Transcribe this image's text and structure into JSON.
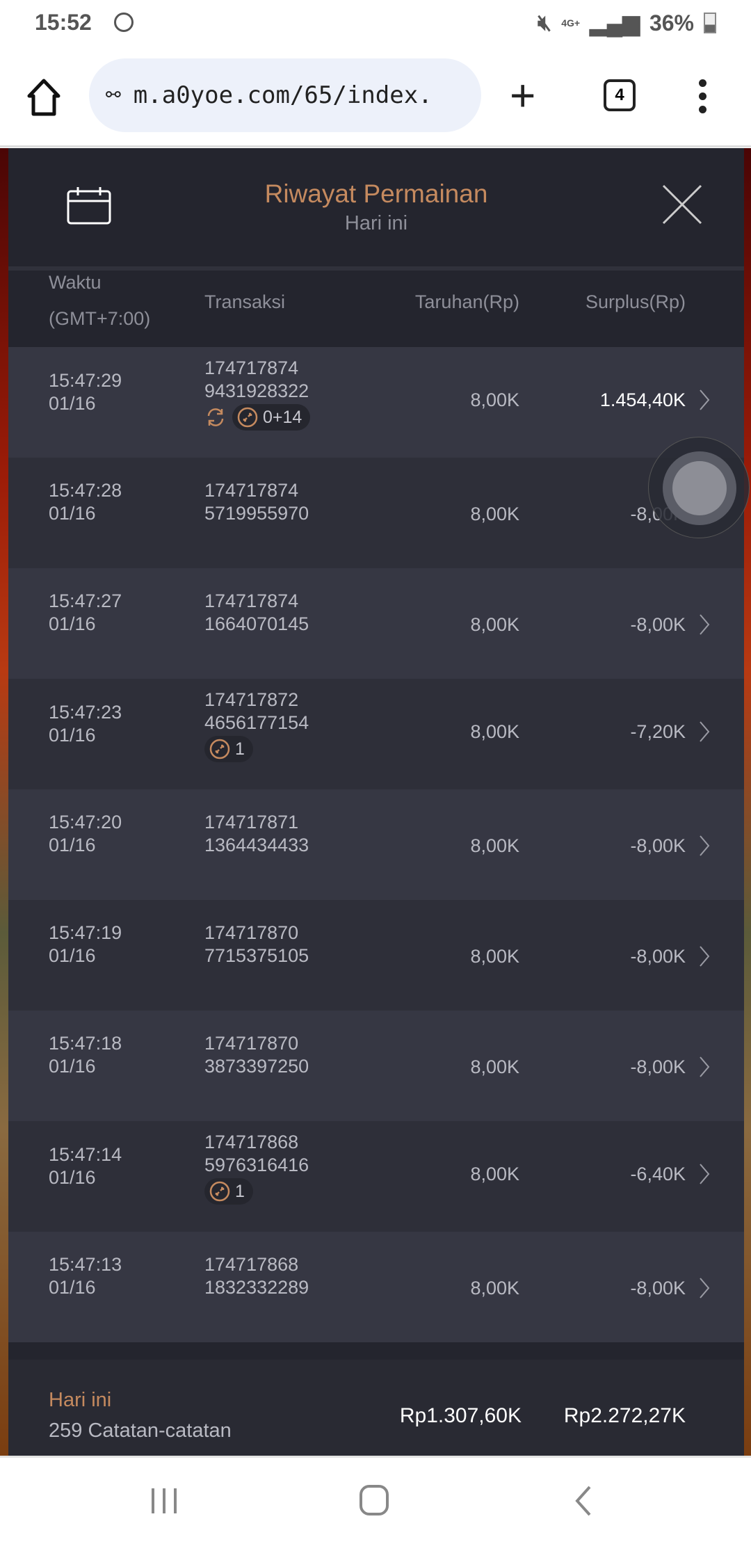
{
  "status_bar": {
    "time": "15:52",
    "network": "4G+",
    "battery": "36%"
  },
  "browser": {
    "url": "m.a0yoe.com/65/index.",
    "tab_count": "4"
  },
  "modal": {
    "title": "Riwayat Permainan",
    "subtitle": "Hari ini",
    "columns": {
      "time": "Waktu",
      "timezone": "(GMT+7:00)",
      "transaction": "Transaksi",
      "bet": "Taruhan(Rp)",
      "surplus": "Surplus(Rp)"
    },
    "rows": [
      {
        "time": "15:47:29",
        "date": "01/16",
        "tx1": "174717874",
        "tx2": "9431928322",
        "bet": "8,00K",
        "surplus": "1.454,40K",
        "positive": true,
        "refresh": true,
        "badge": "0+14"
      },
      {
        "time": "15:47:28",
        "date": "01/16",
        "tx1": "174717874",
        "tx2": "5719955970",
        "bet": "8,00K",
        "surplus": "-8,00K"
      },
      {
        "time": "15:47:27",
        "date": "01/16",
        "tx1": "174717874",
        "tx2": "1664070145",
        "bet": "8,00K",
        "surplus": "-8,00K"
      },
      {
        "time": "15:47:23",
        "date": "01/16",
        "tx1": "174717872",
        "tx2": "4656177154",
        "bet": "8,00K",
        "surplus": "-7,20K",
        "badge": "1"
      },
      {
        "time": "15:47:20",
        "date": "01/16",
        "tx1": "174717871",
        "tx2": "1364434433",
        "bet": "8,00K",
        "surplus": "-8,00K"
      },
      {
        "time": "15:47:19",
        "date": "01/16",
        "tx1": "174717870",
        "tx2": "7715375105",
        "bet": "8,00K",
        "surplus": "-8,00K"
      },
      {
        "time": "15:47:18",
        "date": "01/16",
        "tx1": "174717870",
        "tx2": "3873397250",
        "bet": "8,00K",
        "surplus": "-8,00K"
      },
      {
        "time": "15:47:14",
        "date": "01/16",
        "tx1": "174717868",
        "tx2": "5976316416",
        "bet": "8,00K",
        "surplus": "-6,40K",
        "badge": "1"
      },
      {
        "time": "15:47:13",
        "date": "01/16",
        "tx1": "174717868",
        "tx2": "1832332289",
        "bet": "8,00K",
        "surplus": "-8,00K"
      }
    ],
    "footer": {
      "label": "Hari ini",
      "records": "259 Catatan-catatan",
      "total_bet": "Rp1.307,60K",
      "total_surplus": "Rp2.272,27K"
    }
  },
  "colors": {
    "accent": "#c58a5f",
    "modal_bg": "#24252e",
    "row_light": "#363743",
    "row_dark": "#2e2f39"
  }
}
